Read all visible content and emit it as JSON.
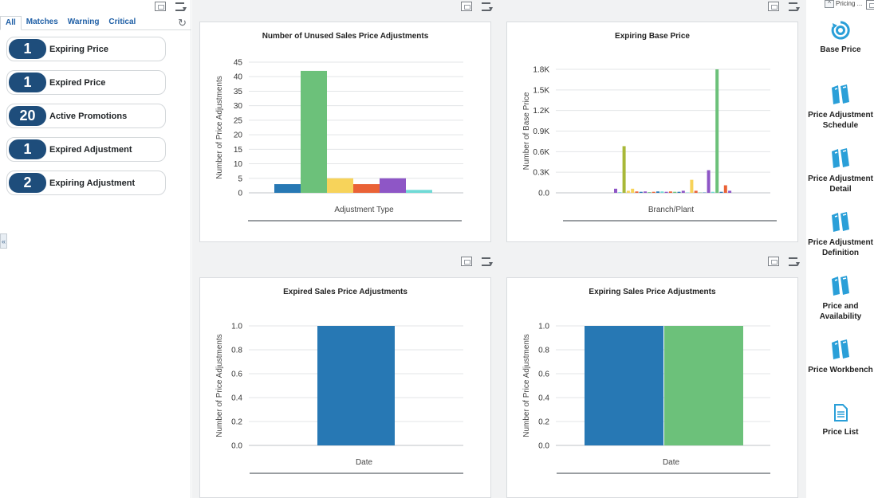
{
  "watchlists": {
    "tabs": [
      "All",
      "Matches",
      "Warning",
      "Critical"
    ],
    "active_tab": "All",
    "items": [
      {
        "count": "1",
        "label": "Expiring Price"
      },
      {
        "count": "1",
        "label": "Expired Price"
      },
      {
        "count": "20",
        "label": "Active Promotions"
      },
      {
        "count": "1",
        "label": "Expired Adjustment"
      },
      {
        "count": "2",
        "label": "Expiring Adjustment"
      }
    ]
  },
  "right_panel": {
    "header_text": "Pricing ...",
    "tiles": [
      {
        "label": "Base Price",
        "icon": "target-icon"
      },
      {
        "label": "Price Adjustment Schedule",
        "icon": "binders-icon"
      },
      {
        "label": "Price Adjustment Detail",
        "icon": "binders-icon"
      },
      {
        "label": "Price Adjustment Definition",
        "icon": "binders-icon"
      },
      {
        "label": "Price and Availability",
        "icon": "binders-icon"
      },
      {
        "label": "Price Workbench",
        "icon": "binders-icon"
      },
      {
        "label": "Price List",
        "icon": "document-icon"
      }
    ]
  },
  "colors": {
    "blue": "#2778b4",
    "green": "#6cc17a",
    "yellow": "#f7d35a",
    "orange": "#ea6236",
    "purple": "#8e56c6",
    "teal": "#6fdad6",
    "olive": "#a8b838",
    "navy": "#1e4d7b"
  },
  "chart_data": [
    {
      "type": "bar",
      "title": "Number of Unused Sales Price Adjustments",
      "xlabel": "Adjustment Type",
      "ylabel": "Number of Price Adjustments",
      "ylim": [
        0,
        45
      ],
      "yticks": [
        "0",
        "5",
        "10",
        "15",
        "20",
        "25",
        "30",
        "35",
        "40",
        "45"
      ],
      "values": [
        3,
        42,
        5,
        3,
        5,
        1
      ],
      "colors": [
        "#2778b4",
        "#6cc17a",
        "#f7d35a",
        "#ea6236",
        "#8e56c6",
        "#6fdad6"
      ]
    },
    {
      "type": "bar",
      "title": "Expiring Base Price",
      "xlabel": "Branch/Plant",
      "ylabel": "Number of Base Price",
      "ylim": [
        0,
        1800
      ],
      "yticks": [
        "0.0",
        "0.3K",
        "0.6K",
        "0.9K",
        "1.2K",
        "1.5K",
        "1.8K"
      ],
      "values": [
        60,
        10,
        680,
        30,
        60,
        20,
        15,
        20,
        10,
        15,
        20,
        20,
        15,
        20,
        15,
        15,
        30,
        5,
        190,
        30,
        5,
        5,
        330,
        15,
        1800,
        15,
        110,
        30
      ],
      "colors": [
        "#8e56c6",
        "#6fdad6",
        "#a8b838",
        "#f7d35a",
        "#f7d35a",
        "#ea6236",
        "#2778b4",
        "#8e56c6",
        "#6cc17a",
        "#ea6236",
        "#2778b4",
        "#6fdad6",
        "#8e56c6",
        "#ea6236",
        "#6cc17a",
        "#2778b4",
        "#8e56c6",
        "#6fdad6",
        "#f7d35a",
        "#ea6236",
        "#6cc17a",
        "#2778b4",
        "#8e56c6",
        "#6fdad6",
        "#6cc17a",
        "#2778b4",
        "#ea6236",
        "#8e56c6"
      ]
    },
    {
      "type": "bar",
      "title": "Expired Sales Price Adjustments",
      "xlabel": "Date",
      "ylabel": "Number of Price Adjustments",
      "ylim": [
        0,
        1
      ],
      "yticks": [
        "0.0",
        "0.2",
        "0.4",
        "0.6",
        "0.8",
        "1.0"
      ],
      "values": [
        1
      ],
      "colors": [
        "#2778b4"
      ]
    },
    {
      "type": "bar",
      "title": "Expiring Sales Price Adjustments",
      "xlabel": "Date",
      "ylabel": "Number of Price Adjustments",
      "ylim": [
        0,
        1
      ],
      "yticks": [
        "0.0",
        "0.2",
        "0.4",
        "0.6",
        "0.8",
        "1.0"
      ],
      "values": [
        1,
        1
      ],
      "colors": [
        "#2778b4",
        "#6cc17a"
      ]
    }
  ]
}
